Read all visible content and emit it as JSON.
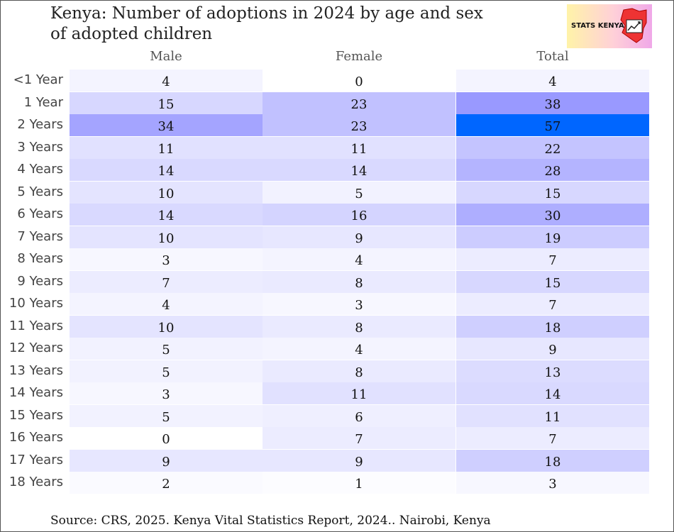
{
  "title_line1": "Kenya: Number of adoptions in 2024 by age and sex",
  "title_line2": "of adopted children",
  "logo_text": "STATS KENYA",
  "logo_icon": "kenya-map-chart-icon",
  "source": "Source: CRS, 2025. Kenya Vital Statistics Report, 2024.. Nairobi, Kenya",
  "colors": {
    "min": "#ffffff",
    "mid": "#9999ff",
    "max": "#0066ff",
    "map": "#ee3333"
  },
  "chart_data": {
    "type": "heatmap",
    "title": "Kenya: Number of adoptions in 2024 by age and sex of adopted children",
    "columns": [
      "Male",
      "Female",
      "Total"
    ],
    "rows": [
      "<1 Year",
      "1 Year",
      "2 Years",
      "3 Years",
      "4 Years",
      "5 Years",
      "6 Years",
      "7 Years",
      "8 Years",
      "9 Years",
      "10 Years",
      "11 Years",
      "12 Years",
      "13 Years",
      "14 Years",
      "15 Years",
      "16 Years",
      "17 Years",
      "18 Years"
    ],
    "values": [
      [
        4,
        0,
        4
      ],
      [
        15,
        23,
        38
      ],
      [
        34,
        23,
        57
      ],
      [
        11,
        11,
        22
      ],
      [
        14,
        14,
        28
      ],
      [
        10,
        5,
        15
      ],
      [
        14,
        16,
        30
      ],
      [
        10,
        9,
        19
      ],
      [
        3,
        4,
        7
      ],
      [
        7,
        8,
        15
      ],
      [
        4,
        3,
        7
      ],
      [
        10,
        8,
        18
      ],
      [
        5,
        4,
        9
      ],
      [
        5,
        8,
        13
      ],
      [
        3,
        11,
        14
      ],
      [
        5,
        6,
        11
      ],
      [
        0,
        7,
        7
      ],
      [
        9,
        9,
        18
      ],
      [
        2,
        1,
        3
      ]
    ],
    "color_scale": {
      "min_value": 0,
      "mid_value": 38,
      "max_value": 57
    }
  }
}
